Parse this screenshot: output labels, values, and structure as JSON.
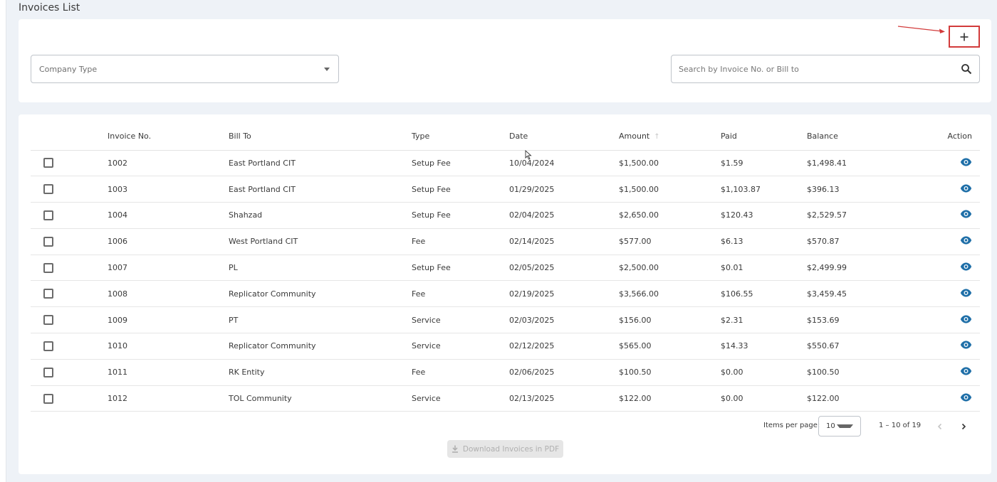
{
  "page": {
    "title": "Invoices List"
  },
  "filters": {
    "company_type_placeholder": "Company Type",
    "search_placeholder": "Search by Invoice No. or Bill to"
  },
  "table": {
    "headers": {
      "invoice_no": "Invoice No.",
      "bill_to": "Bill To",
      "type": "Type",
      "date": "Date",
      "amount": "Amount",
      "paid": "Paid",
      "balance": "Balance",
      "action": "Action"
    },
    "rows": [
      {
        "invoice_no": "1002",
        "bill_to": "East Portland CIT",
        "type": "Setup Fee",
        "date": "10/04/2024",
        "amount": "$1,500.00",
        "paid": "$1.59",
        "balance": "$1,498.41"
      },
      {
        "invoice_no": "1003",
        "bill_to": "East Portland CIT",
        "type": "Setup Fee",
        "date": "01/29/2025",
        "amount": "$1,500.00",
        "paid": "$1,103.87",
        "balance": "$396.13"
      },
      {
        "invoice_no": "1004",
        "bill_to": "Shahzad",
        "type": "Setup Fee",
        "date": "02/04/2025",
        "amount": "$2,650.00",
        "paid": "$120.43",
        "balance": "$2,529.57"
      },
      {
        "invoice_no": "1006",
        "bill_to": "West Portland CIT",
        "type": "Fee",
        "date": "02/14/2025",
        "amount": "$577.00",
        "paid": "$6.13",
        "balance": "$570.87"
      },
      {
        "invoice_no": "1007",
        "bill_to": "PL",
        "type": "Setup Fee",
        "date": "02/05/2025",
        "amount": "$2,500.00",
        "paid": "$0.01",
        "balance": "$2,499.99"
      },
      {
        "invoice_no": "1008",
        "bill_to": "Replicator Community",
        "type": "Fee",
        "date": "02/19/2025",
        "amount": "$3,566.00",
        "paid": "$106.55",
        "balance": "$3,459.45"
      },
      {
        "invoice_no": "1009",
        "bill_to": "PT",
        "type": "Service",
        "date": "02/03/2025",
        "amount": "$156.00",
        "paid": "$2.31",
        "balance": "$153.69"
      },
      {
        "invoice_no": "1010",
        "bill_to": "Replicator Community",
        "type": "Service",
        "date": "02/12/2025",
        "amount": "$565.00",
        "paid": "$14.33",
        "balance": "$550.67"
      },
      {
        "invoice_no": "1011",
        "bill_to": "RK Entity",
        "type": "Fee",
        "date": "02/06/2025",
        "amount": "$100.50",
        "paid": "$0.00",
        "balance": "$100.50"
      },
      {
        "invoice_no": "1012",
        "bill_to": "TOL Community",
        "type": "Service",
        "date": "02/13/2025",
        "amount": "$122.00",
        "paid": "$0.00",
        "balance": "$122.00"
      }
    ]
  },
  "paginator": {
    "items_per_page_label": "Items per page:",
    "items_per_page_value": "10",
    "range_label": "1 – 10 of 19"
  },
  "download": {
    "label": "Download Invoices in PDF"
  },
  "colors": {
    "accent": "#1f6fa8",
    "highlight": "#d23b3b"
  },
  "icons": [
    "plus-icon",
    "search-icon",
    "eye-icon",
    "chevron-left-icon",
    "chevron-right-icon",
    "download-icon",
    "caret-down-icon"
  ]
}
